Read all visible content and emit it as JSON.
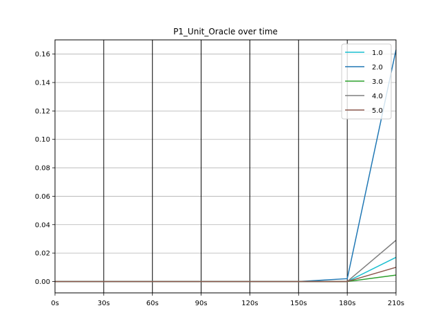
{
  "chart_data": {
    "type": "line",
    "title": "P1_Unit_Oracle over time",
    "xlabel": "",
    "ylabel": "",
    "x": [
      0,
      30,
      60,
      90,
      120,
      150,
      180,
      210
    ],
    "x_tick_labels": [
      "0s",
      "30s",
      "60s",
      "90s",
      "120s",
      "150s",
      "180s",
      "210s"
    ],
    "xlim": [
      0,
      210
    ],
    "ylim": [
      -0.008,
      0.17
    ],
    "y_ticks": [
      0.0,
      0.02,
      0.04,
      0.06,
      0.08,
      0.1,
      0.12,
      0.14,
      0.16
    ],
    "y_tick_labels": [
      "0.00",
      "0.02",
      "0.04",
      "0.06",
      "0.08",
      "0.10",
      "0.12",
      "0.14",
      "0.16"
    ],
    "grid": "horizontal",
    "vertical_lines_at": [
      30,
      60,
      90,
      120,
      150,
      180
    ],
    "legend_position": "top-right",
    "series": [
      {
        "name": "1.0",
        "color": "#17becf",
        "values": [
          0,
          0,
          0,
          0,
          0,
          0,
          0.0,
          0.017
        ]
      },
      {
        "name": "2.0",
        "color": "#1f77b4",
        "values": [
          0,
          0,
          0,
          0,
          0,
          0,
          0.002,
          0.163
        ]
      },
      {
        "name": "3.0",
        "color": "#2ca02c",
        "values": [
          0,
          0,
          0,
          0,
          0,
          0,
          0.0,
          0.0045
        ]
      },
      {
        "name": "4.0",
        "color": "#7f7f7f",
        "values": [
          0,
          0,
          0,
          0,
          0,
          0,
          0.0,
          0.029
        ]
      },
      {
        "name": "5.0",
        "color": "#8c564b",
        "values": [
          0,
          0,
          0,
          0,
          0,
          0,
          0.0,
          0.01
        ]
      }
    ]
  }
}
